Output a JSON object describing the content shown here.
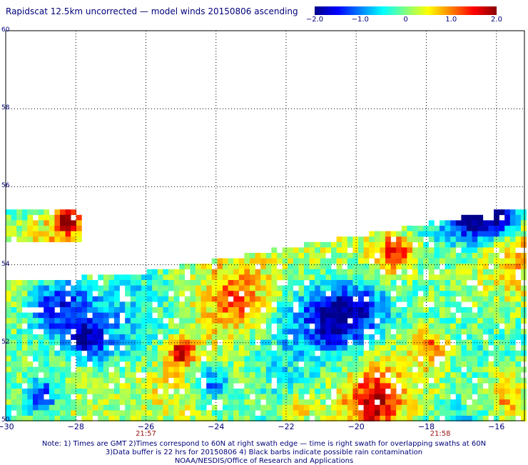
{
  "title": "Rapidscat 12.5km uncorrected — model winds 20150806 ascending",
  "colorbar": {
    "ticks": [
      "−2.0",
      "−1.0",
      "0",
      "1.0",
      "2.0"
    ],
    "tick_values": [
      -2.0,
      -1.0,
      0,
      1.0,
      2.0
    ],
    "colors": [
      "#00008b",
      "#0000ff",
      "#0080ff",
      "#00ffff",
      "#80ff80",
      "#ffff00",
      "#ff8000",
      "#ff0000",
      "#8b0000"
    ]
  },
  "map": {
    "lat_ticks": [
      "60",
      "58",
      "56",
      "54",
      "52",
      "50"
    ],
    "lat_values": [
      60,
      58,
      56,
      54,
      52,
      50
    ],
    "lon_ticks": [
      "−30",
      "−28",
      "−26",
      "−24",
      "−22",
      "−20",
      "−18",
      "−16"
    ],
    "lon_values": [
      -30,
      -28,
      -26,
      -24,
      -22,
      -20,
      -18,
      -16
    ],
    "lat_range": [
      50,
      60
    ],
    "lon_range": [
      -30,
      -15.2
    ],
    "grid": "dotted",
    "time_labels": [
      {
        "text": "21:57",
        "lon": -26
      },
      {
        "text": "21:58",
        "lon": -17.6
      }
    ]
  },
  "notes": [
    "Note: 1) Times are GMT 2)Times correspond to 60N at right swath edge — time is right swath for overlapping swaths at 60N",
    "3)Data buffer is 22 hrs for 20150806 4) Black barbs indicate possible rain contamination",
    "NOAA/NESDIS/Office of Research and Applications"
  ]
}
